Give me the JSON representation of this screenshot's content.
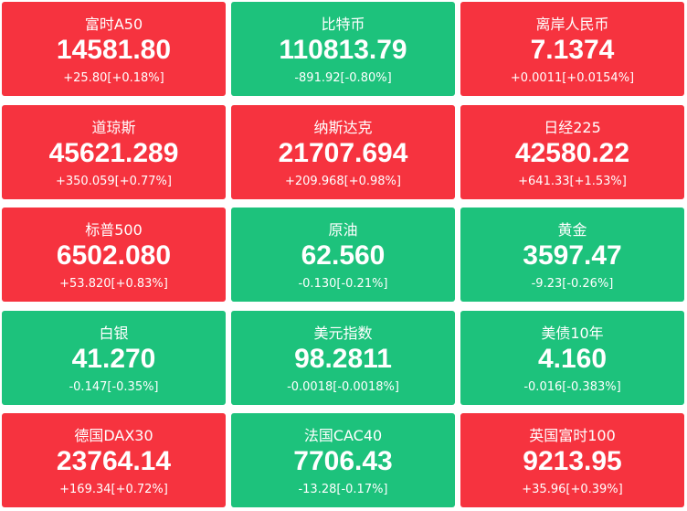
{
  "tiles": [
    {
      "name": "富时A50",
      "value": "14581.80",
      "change": "+25.80[+0.18%]",
      "color": "#f6333f"
    },
    {
      "name": "比特币",
      "value": "110813.79",
      "change": "-891.92[-0.80%]",
      "color": "#1dc27c"
    },
    {
      "name": "离岸人民币",
      "value": "7.1374",
      "change": "+0.0011[+0.0154%]",
      "color": "#f6333f"
    },
    {
      "name": "道琼斯",
      "value": "45621.289",
      "change": "+350.059[+0.77%]",
      "color": "#f6333f"
    },
    {
      "name": "纳斯达克",
      "value": "21707.694",
      "change": "+209.968[+0.98%]",
      "color": "#f6333f"
    },
    {
      "name": "日经225",
      "value": "42580.22",
      "change": "+641.33[+1.53%]",
      "color": "#f6333f"
    },
    {
      "name": "标普500",
      "value": "6502.080",
      "change": "+53.820[+0.83%]",
      "color": "#f6333f"
    },
    {
      "name": "原油",
      "value": "62.560",
      "change": "-0.130[-0.21%]",
      "color": "#1dc27c"
    },
    {
      "name": "黄金",
      "value": "3597.47",
      "change": "-9.23[-0.26%]",
      "color": "#1dc27c"
    },
    {
      "name": "白银",
      "value": "41.270",
      "change": "-0.147[-0.35%]",
      "color": "#1dc27c"
    },
    {
      "name": "美元指数",
      "value": "98.2811",
      "change": "-0.0018[-0.0018%]",
      "color": "#1dc27c"
    },
    {
      "name": "美债10年",
      "value": "4.160",
      "change": "-0.016[-0.383%]",
      "color": "#1dc27c"
    },
    {
      "name": "德国DAX30",
      "value": "23764.14",
      "change": "+169.34[+0.72%]",
      "color": "#f6333f"
    },
    {
      "name": "法国CAC40",
      "value": "7706.43",
      "change": "-13.28[-0.17%]",
      "color": "#1dc27c"
    },
    {
      "name": "英国富时100",
      "value": "9213.95",
      "change": "+35.96[+0.39%]",
      "color": "#f6333f"
    }
  ]
}
